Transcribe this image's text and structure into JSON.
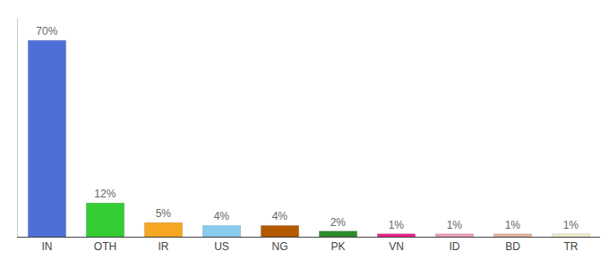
{
  "chart_data": {
    "type": "bar",
    "categories": [
      "IN",
      "OTH",
      "IR",
      "US",
      "NG",
      "PK",
      "VN",
      "ID",
      "BD",
      "TR"
    ],
    "values": [
      70,
      12,
      5,
      4,
      4,
      2,
      1,
      1,
      1,
      1
    ],
    "value_labels": [
      "70%",
      "12%",
      "5%",
      "4%",
      "4%",
      "2%",
      "1%",
      "1%",
      "1%",
      "1%"
    ],
    "colors": [
      "#4f6fd8",
      "#33cc33",
      "#f5a623",
      "#88ccee",
      "#b35a00",
      "#2d8c2d",
      "#ee2288",
      "#f0a0b8",
      "#e8b8a0",
      "#f5f0d0"
    ],
    "ylim": [
      0,
      78
    ],
    "data_labels": true,
    "tick_labels": "x",
    "grid": false
  }
}
